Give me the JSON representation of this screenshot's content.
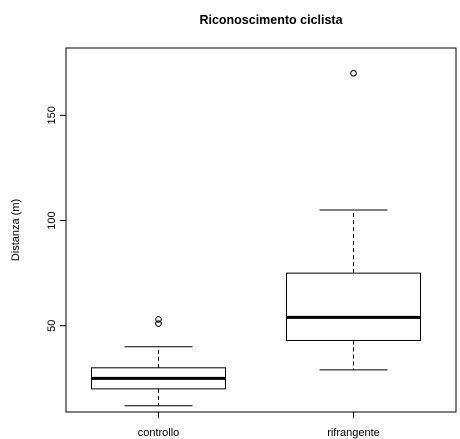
{
  "chart_data": {
    "type": "boxplot",
    "title": "Riconoscimento ciclista",
    "xlabel": "",
    "ylabel": "Distanza (m)",
    "ylim": [
      9,
      182
    ],
    "yticks": [
      50,
      100,
      150
    ],
    "ytick_labels": [
      "50",
      "100",
      "150"
    ],
    "categories": [
      "controllo",
      "rifrangente"
    ],
    "boxes": [
      {
        "category": "controllo",
        "whisker_low": 12,
        "q1": 20,
        "median": 25,
        "q3": 30,
        "whisker_high": 40,
        "outliers": [
          51,
          53
        ]
      },
      {
        "category": "rifrangente",
        "whisker_low": 29,
        "q1": 43,
        "median": 54,
        "q3": 75,
        "whisker_high": 105,
        "outliers": [
          170
        ]
      }
    ],
    "grid": false,
    "legend": "none"
  }
}
